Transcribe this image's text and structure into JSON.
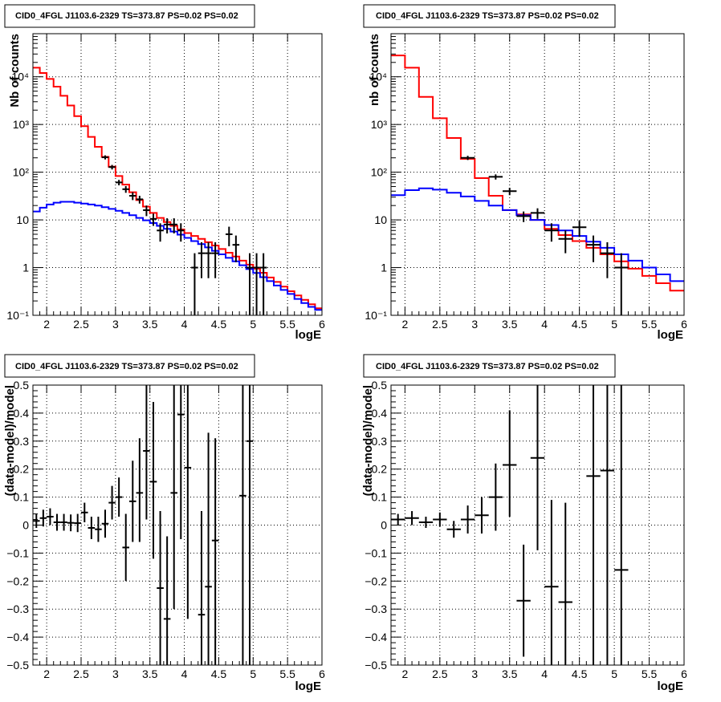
{
  "chart_data": [
    {
      "type": "line",
      "title": "CID0_4FGL J1103.6-2329 TS=373.87 PS=0.02 PS=0.02",
      "xlabel": "logE",
      "ylabel": "Nb of counts",
      "xlim": [
        1.8,
        6.0
      ],
      "ylim": [
        0.1,
        80000
      ],
      "yscale": "log",
      "grid": true,
      "x_ticks": [
        "2",
        "2.5",
        "3",
        "3.5",
        "4",
        "4.5",
        "5",
        "5.5",
        "6"
      ],
      "y_ticks": [
        "10⁻¹",
        "1",
        "10",
        "10²",
        "10³",
        "10⁴"
      ],
      "bin_edges": [
        1.8,
        1.9,
        2.0,
        2.1,
        2.2,
        2.3,
        2.4,
        2.5,
        2.6,
        2.7,
        2.8,
        2.9,
        3.0,
        3.1,
        3.2,
        3.3,
        3.4,
        3.5,
        3.6,
        3.7,
        3.8,
        3.9,
        4.0,
        4.1,
        4.2,
        4.3,
        4.4,
        4.5,
        4.6,
        4.7,
        4.8,
        4.9,
        5.0,
        5.1,
        5.2,
        5.3,
        5.4,
        5.5,
        5.6,
        5.7,
        5.8,
        5.9,
        6.0
      ],
      "series": [
        {
          "color": "#ff0000",
          "values": [
            15500,
            12000,
            9000,
            6200,
            4000,
            2500,
            1500,
            920,
            550,
            340,
            210,
            130,
            83,
            55,
            38,
            26,
            19,
            14,
            11,
            9,
            7.5,
            6.3,
            5.3,
            4.6,
            4.0,
            3.4,
            2.9,
            2.45,
            2.05,
            1.7,
            1.4,
            1.15,
            0.95,
            0.78,
            0.62,
            0.5,
            0.4,
            0.32,
            0.26,
            0.21,
            0.17,
            0.14
          ]
        },
        {
          "color": "#0000ff",
          "values": [
            15,
            18,
            21,
            23,
            24,
            24,
            23,
            22,
            21,
            20,
            18.5,
            17,
            15.5,
            14,
            12.5,
            11,
            9.8,
            8.6,
            7.5,
            6.5,
            5.7,
            4.9,
            4.2,
            3.6,
            3.1,
            2.65,
            2.25,
            1.9,
            1.6,
            1.35,
            1.12,
            0.93,
            0.77,
            0.63,
            0.52,
            0.42,
            0.34,
            0.28,
            0.22,
            0.18,
            0.15,
            0.13
          ]
        }
      ],
      "points": [
        {
          "x": 2.85,
          "y": 205,
          "xerr": 0.05,
          "lo": 185,
          "hi": 225
        },
        {
          "x": 2.95,
          "y": 128,
          "xerr": 0.05,
          "lo": 114,
          "hi": 142
        },
        {
          "x": 3.05,
          "y": 61,
          "xerr": 0.05,
          "lo": 53,
          "hi": 69
        },
        {
          "x": 3.15,
          "y": 44,
          "xerr": 0.05,
          "lo": 37,
          "hi": 51
        },
        {
          "x": 3.25,
          "y": 32,
          "xerr": 0.05,
          "lo": 26,
          "hi": 38
        },
        {
          "x": 3.35,
          "y": 27,
          "xerr": 0.05,
          "lo": 22,
          "hi": 32
        },
        {
          "x": 3.45,
          "y": 16,
          "xerr": 0.05,
          "lo": 12,
          "hi": 20
        },
        {
          "x": 3.55,
          "y": 10.5,
          "xerr": 0.05,
          "lo": 7.5,
          "hi": 13.5
        },
        {
          "x": 3.65,
          "y": 6,
          "xerr": 0.05,
          "lo": 3.5,
          "hi": 8.5
        },
        {
          "x": 3.75,
          "y": 8,
          "xerr": 0.05,
          "lo": 5.2,
          "hi": 10.8
        },
        {
          "x": 3.85,
          "y": 8,
          "xerr": 0.05,
          "lo": 5.2,
          "hi": 10.8
        },
        {
          "x": 3.95,
          "y": 6,
          "xerr": 0.05,
          "lo": 3.5,
          "hi": 8.5
        },
        {
          "x": 4.15,
          "y": 1,
          "xerr": 0.05,
          "lo": 0.1,
          "hi": 2.0
        },
        {
          "x": 4.25,
          "y": 2,
          "xerr": 0.05,
          "lo": 0.6,
          "hi": 3.4
        },
        {
          "x": 4.35,
          "y": 2,
          "xerr": 0.05,
          "lo": 0.6,
          "hi": 3.4
        },
        {
          "x": 4.45,
          "y": 2,
          "xerr": 0.05,
          "lo": 0.6,
          "hi": 3.4
        },
        {
          "x": 4.65,
          "y": 5,
          "xerr": 0.05,
          "lo": 2.8,
          "hi": 7.2
        },
        {
          "x": 4.75,
          "y": 3,
          "xerr": 0.05,
          "lo": 1.3,
          "hi": 4.7
        },
        {
          "x": 4.95,
          "y": 1,
          "xerr": 0.05,
          "lo": 0.1,
          "hi": 2.0
        },
        {
          "x": 5.05,
          "y": 1,
          "xerr": 0.05,
          "lo": 0.1,
          "hi": 2.0
        },
        {
          "x": 5.15,
          "y": 1,
          "xerr": 0.05,
          "lo": 0.1,
          "hi": 2.0
        }
      ]
    },
    {
      "type": "line",
      "title": "CID0_4FGL J1103.6-2329 TS=373.87 PS=0.02 PS=0.02",
      "xlabel": "logE",
      "ylabel": "nb of counts",
      "xlim": [
        1.8,
        6.0
      ],
      "ylim": [
        0.1,
        80000
      ],
      "yscale": "log",
      "grid": true,
      "x_ticks": [
        "2",
        "2.5",
        "3",
        "3.5",
        "4",
        "4.5",
        "5",
        "5.5",
        "6"
      ],
      "y_ticks": [
        "10⁻¹",
        "1",
        "10",
        "10²",
        "10³",
        "10⁴"
      ],
      "bin_edges": [
        1.8,
        2.0,
        2.2,
        2.4,
        2.6,
        2.8,
        3.0,
        3.2,
        3.4,
        3.6,
        3.8,
        4.0,
        4.2,
        4.4,
        4.6,
        4.8,
        5.0,
        5.2,
        5.4,
        5.6,
        5.8,
        6.0
      ],
      "series": [
        {
          "color": "#ff0000",
          "values": [
            28000,
            15500,
            3800,
            1350,
            520,
            190,
            75,
            32,
            16,
            13,
            10,
            6.5,
            4.8,
            3.6,
            2.6,
            1.9,
            1.35,
            0.95,
            0.67,
            0.47,
            0.33
          ]
        },
        {
          "color": "#0000ff",
          "values": [
            33,
            42,
            46,
            43,
            37,
            31,
            25,
            20,
            16,
            12.5,
            10,
            7.8,
            6.0,
            4.6,
            3.5,
            2.6,
            1.9,
            1.4,
            1.0,
            0.72,
            0.52
          ]
        }
      ],
      "points": [
        {
          "x": 2.9,
          "y": 200,
          "xerr": 0.1,
          "lo": 180,
          "hi": 220
        },
        {
          "x": 3.3,
          "y": 80,
          "xerr": 0.1,
          "lo": 70,
          "hi": 90
        },
        {
          "x": 3.5,
          "y": 40,
          "xerr": 0.1,
          "lo": 33,
          "hi": 47
        },
        {
          "x": 3.7,
          "y": 12,
          "xerr": 0.1,
          "lo": 9,
          "hi": 15
        },
        {
          "x": 3.9,
          "y": 14,
          "xerr": 0.1,
          "lo": 10.5,
          "hi": 17.5
        },
        {
          "x": 4.1,
          "y": 6,
          "xerr": 0.1,
          "lo": 3.5,
          "hi": 8.5
        },
        {
          "x": 4.3,
          "y": 4,
          "xerr": 0.1,
          "lo": 2.0,
          "hi": 6.0
        },
        {
          "x": 4.5,
          "y": 7,
          "xerr": 0.1,
          "lo": 4.4,
          "hi": 9.6
        },
        {
          "x": 4.7,
          "y": 3,
          "xerr": 0.1,
          "lo": 1.3,
          "hi": 4.7
        },
        {
          "x": 4.9,
          "y": 2,
          "xerr": 0.1,
          "lo": 0.6,
          "hi": 3.4
        },
        {
          "x": 5.1,
          "y": 1,
          "xerr": 0.1,
          "lo": 0.1,
          "hi": 2.0
        }
      ]
    },
    {
      "type": "scatter",
      "title": "CID0_4FGL J1103.6-2329 TS=373.87 PS=0.02 PS=0.02",
      "xlabel": "logE",
      "ylabel": "(data-model)/model",
      "xlim": [
        1.8,
        6.0
      ],
      "ylim": [
        -0.5,
        0.5
      ],
      "grid": true,
      "x_ticks": [
        "2",
        "2.5",
        "3",
        "3.5",
        "4",
        "4.5",
        "5",
        "5.5",
        "6"
      ],
      "y_ticks": [
        "−0.5",
        "−0.4",
        "−0.3",
        "−0.2",
        "−0.1",
        "0",
        "0.1",
        "0.2",
        "0.3",
        "0.4",
        "0.5"
      ],
      "points": [
        {
          "x": 1.85,
          "y": 0.015,
          "xerr": 0.05,
          "lo": -0.01,
          "hi": 0.04
        },
        {
          "x": 1.95,
          "y": 0.025,
          "xerr": 0.05,
          "lo": -0.005,
          "hi": 0.055
        },
        {
          "x": 2.05,
          "y": 0.03,
          "xerr": 0.05,
          "lo": 0.0,
          "hi": 0.06
        },
        {
          "x": 2.15,
          "y": 0.01,
          "xerr": 0.05,
          "lo": -0.02,
          "hi": 0.04
        },
        {
          "x": 2.25,
          "y": 0.01,
          "xerr": 0.05,
          "lo": -0.02,
          "hi": 0.04
        },
        {
          "x": 2.35,
          "y": 0.008,
          "xerr": 0.05,
          "lo": -0.022,
          "hi": 0.038
        },
        {
          "x": 2.45,
          "y": 0.007,
          "xerr": 0.05,
          "lo": -0.025,
          "hi": 0.04
        },
        {
          "x": 2.55,
          "y": 0.045,
          "xerr": 0.05,
          "lo": 0.01,
          "hi": 0.08
        },
        {
          "x": 2.65,
          "y": -0.01,
          "xerr": 0.05,
          "lo": -0.05,
          "hi": 0.03
        },
        {
          "x": 2.75,
          "y": -0.015,
          "xerr": 0.05,
          "lo": -0.06,
          "hi": 0.03
        },
        {
          "x": 2.85,
          "y": 0.005,
          "xerr": 0.05,
          "lo": -0.045,
          "hi": 0.055
        },
        {
          "x": 2.95,
          "y": 0.08,
          "xerr": 0.05,
          "lo": 0.02,
          "hi": 0.14
        },
        {
          "x": 3.05,
          "y": 0.1,
          "xerr": 0.05,
          "lo": 0.03,
          "hi": 0.17
        },
        {
          "x": 3.15,
          "y": -0.08,
          "xerr": 0.05,
          "lo": -0.2,
          "hi": 0.04
        },
        {
          "x": 3.25,
          "y": 0.085,
          "xerr": 0.05,
          "lo": -0.06,
          "hi": 0.23
        },
        {
          "x": 3.35,
          "y": 0.115,
          "xerr": 0.05,
          "lo": -0.06,
          "hi": 0.31
        },
        {
          "x": 3.45,
          "y": 0.265,
          "xerr": 0.05,
          "lo": 0.02,
          "hi": 0.5
        },
        {
          "x": 3.55,
          "y": 0.155,
          "xerr": 0.05,
          "lo": -0.12,
          "hi": 0.44
        },
        {
          "x": 3.65,
          "y": -0.225,
          "xerr": 0.05,
          "lo": -0.5,
          "hi": 0.05
        },
        {
          "x": 3.75,
          "y": -0.335,
          "xerr": 0.05,
          "lo": -0.5,
          "hi": -0.04
        },
        {
          "x": 3.85,
          "y": 0.115,
          "xerr": 0.05,
          "lo": -0.3,
          "hi": 0.5
        },
        {
          "x": 3.95,
          "y": 0.395,
          "xerr": 0.05,
          "lo": -0.05,
          "hi": 0.5
        },
        {
          "x": 4.05,
          "y": 0.205,
          "xerr": 0.05,
          "lo": -0.335,
          "hi": 0.5
        },
        {
          "x": 4.25,
          "y": -0.32,
          "xerr": 0.05,
          "lo": -0.5,
          "hi": 0.05
        },
        {
          "x": 4.35,
          "y": -0.22,
          "xerr": 0.05,
          "lo": -0.5,
          "hi": 0.33
        },
        {
          "x": 4.45,
          "y": -0.055,
          "xerr": 0.05,
          "lo": -0.5,
          "hi": 0.31
        },
        {
          "x": 4.85,
          "y": 0.105,
          "xerr": 0.05,
          "lo": -0.5,
          "hi": 0.5
        },
        {
          "x": 4.95,
          "y": 0.3,
          "xerr": 0.05,
          "lo": -0.5,
          "hi": 0.5
        }
      ]
    },
    {
      "type": "scatter",
      "title": "CID0_4FGL J1103.6-2329 TS=373.87 PS=0.02 PS=0.02",
      "xlabel": "logE",
      "ylabel": "(data-model)/model",
      "xlim": [
        1.8,
        6.0
      ],
      "ylim": [
        -0.5,
        0.5
      ],
      "grid": true,
      "x_ticks": [
        "2",
        "2.5",
        "3",
        "3.5",
        "4",
        "4.5",
        "5",
        "5.5",
        "6"
      ],
      "y_ticks": [
        "−0.5",
        "−0.4",
        "−0.3",
        "−0.2",
        "−0.1",
        "0",
        "0.1",
        "0.2",
        "0.3",
        "0.4",
        "0.5"
      ],
      "points": [
        {
          "x": 1.9,
          "y": 0.02,
          "xerr": 0.1,
          "lo": 0.0,
          "hi": 0.04
        },
        {
          "x": 2.1,
          "y": 0.025,
          "xerr": 0.1,
          "lo": 0.0,
          "hi": 0.05
        },
        {
          "x": 2.3,
          "y": 0.01,
          "xerr": 0.1,
          "lo": -0.01,
          "hi": 0.03
        },
        {
          "x": 2.5,
          "y": 0.02,
          "xerr": 0.1,
          "lo": -0.005,
          "hi": 0.045
        },
        {
          "x": 2.7,
          "y": -0.015,
          "xerr": 0.1,
          "lo": -0.045,
          "hi": 0.015
        },
        {
          "x": 2.9,
          "y": 0.02,
          "xerr": 0.1,
          "lo": -0.03,
          "hi": 0.07
        },
        {
          "x": 3.1,
          "y": 0.035,
          "xerr": 0.1,
          "lo": -0.03,
          "hi": 0.1
        },
        {
          "x": 3.3,
          "y": 0.1,
          "xerr": 0.1,
          "lo": -0.02,
          "hi": 0.22
        },
        {
          "x": 3.5,
          "y": 0.215,
          "xerr": 0.1,
          "lo": 0.03,
          "hi": 0.41
        },
        {
          "x": 3.7,
          "y": -0.27,
          "xerr": 0.1,
          "lo": -0.47,
          "hi": -0.07
        },
        {
          "x": 3.9,
          "y": 0.24,
          "xerr": 0.1,
          "lo": -0.09,
          "hi": 0.5
        },
        {
          "x": 4.1,
          "y": -0.22,
          "xerr": 0.1,
          "lo": -0.5,
          "hi": 0.09
        },
        {
          "x": 4.3,
          "y": -0.275,
          "xerr": 0.1,
          "lo": -0.5,
          "hi": 0.08
        },
        {
          "x": 4.7,
          "y": 0.175,
          "xerr": 0.1,
          "lo": -0.5,
          "hi": 0.5
        },
        {
          "x": 4.9,
          "y": 0.195,
          "xerr": 0.1,
          "lo": -0.5,
          "hi": 0.5
        },
        {
          "x": 5.1,
          "y": -0.16,
          "xerr": 0.1,
          "lo": -0.5,
          "hi": 0.5
        }
      ]
    }
  ]
}
